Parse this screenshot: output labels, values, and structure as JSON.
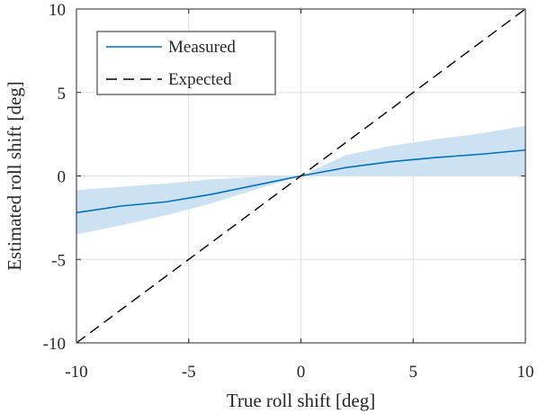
{
  "chart_data": {
    "type": "line",
    "xlabel": "True roll shift [deg]",
    "ylabel": "Estimated roll shift [deg]",
    "xlim": [
      -10,
      10
    ],
    "ylim": [
      -10,
      10
    ],
    "xticks": [
      -10,
      -5,
      0,
      5,
      10
    ],
    "yticks": [
      -10,
      -5,
      0,
      5,
      10
    ],
    "xtick_labels": [
      "-10",
      "-5",
      "0",
      "5",
      "10"
    ],
    "ytick_labels": [
      "-10",
      "-5",
      "0",
      "5",
      "10"
    ],
    "grid": true,
    "legend_position": "top-left",
    "series": [
      {
        "name": "Measured",
        "style": "solid",
        "color": "#0072BD",
        "x": [
          -10,
          -8,
          -6,
          -4,
          -2,
          0,
          2,
          4,
          6,
          8,
          10
        ],
        "y": [
          -2.2,
          -1.8,
          -1.55,
          -1.1,
          -0.55,
          0.0,
          0.5,
          0.85,
          1.1,
          1.3,
          1.55
        ],
        "band_upper": [
          -0.85,
          -0.65,
          -0.45,
          -0.2,
          -0.05,
          0.0,
          1.25,
          1.8,
          2.2,
          2.55,
          3.0
        ],
        "band_lower": [
          -3.5,
          -2.95,
          -2.35,
          -1.65,
          -0.8,
          0.0,
          0.0,
          0.0,
          0.0,
          0.0,
          0.0
        ],
        "band_color": "#CCE1F2"
      },
      {
        "name": "Expected",
        "style": "dashed",
        "color": "#000000",
        "x": [
          -10,
          10
        ],
        "y": [
          -10,
          10
        ]
      }
    ]
  }
}
